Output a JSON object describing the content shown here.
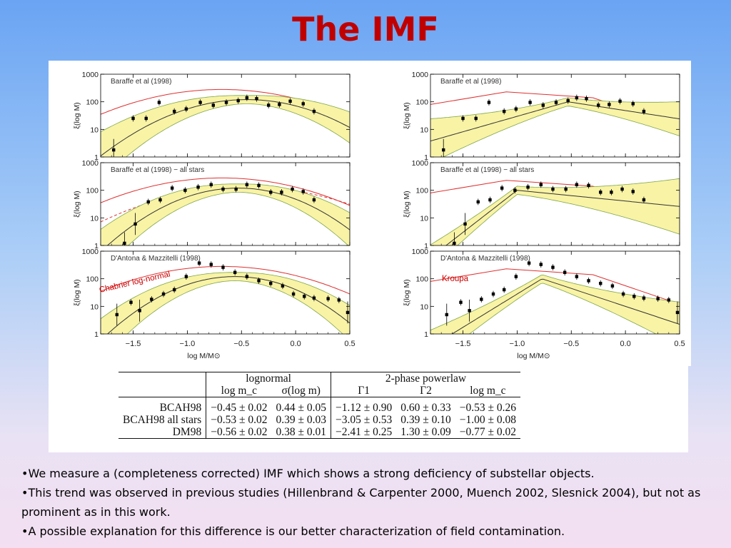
{
  "slide": {
    "title": "The IMF",
    "bullets": [
      "•We measure a (completeness corrected) IMF which shows a strong deficiency of substellar objects.",
      "•This trend was observed in previous studies (Hillenbrand & Carpenter 2000, Muench 2002, Slesnick 2004), but not as prominent as in this work.",
      "•A possible explanation for this difference is our better characterization of field contamination."
    ]
  },
  "table": {
    "group_headers": [
      "lognormal",
      "2-phase powerlaw"
    ],
    "columns": [
      "log m_c",
      "σ(log m)",
      "Γ1",
      "Γ2",
      "log m_c"
    ],
    "rows": [
      {
        "label": "BCAH98",
        "cells": [
          "−0.45 ± 0.02",
          "0.44 ± 0.05",
          "−1.12 ± 0.90",
          "0.60 ± 0.33",
          "−0.53 ± 0.26"
        ]
      },
      {
        "label": "BCAH98 all stars",
        "cells": [
          "−0.53 ± 0.02",
          "0.39 ± 0.03",
          "−3.05 ± 0.53",
          "0.39 ± 0.10",
          "−1.00 ± 0.08"
        ]
      },
      {
        "label": "DM98",
        "cells": [
          "−0.56 ± 0.02",
          "0.38 ± 0.01",
          "−2.41 ± 0.25",
          "1.30 ± 0.09",
          "−0.77 ± 0.02"
        ]
      }
    ]
  },
  "chart_data": {
    "type": "scatter",
    "ylabel": "ξ(log M)",
    "xlabel": "log M/M⊙",
    "xlim": [
      -1.8,
      0.5
    ],
    "ylim": [
      1,
      1000
    ],
    "y_scale": "log",
    "x_ticks": [
      -1.5,
      -1.0,
      -0.5,
      0.0,
      0.5
    ],
    "x_tick_labels": [
      "−1.5",
      "−1.0",
      "−0.5",
      "0.0",
      "0.5"
    ],
    "y_ticks": [
      1,
      10,
      100,
      1000
    ],
    "y_tick_labels": [
      "1",
      "10",
      "100",
      "1000"
    ],
    "colors": {
      "data": "#000000",
      "fit": "#333333",
      "reference": "#e03030",
      "band": "#f9f3a6",
      "band_edge": "#7fa64a",
      "annotation": "#cc0000"
    },
    "panels": [
      {
        "title": "Baraffe et al (1998)",
        "fit": "lognormal",
        "mc": -0.45,
        "sigma": 0.44,
        "points": [
          [
            -1.68,
            1.8
          ],
          [
            -1.5,
            25
          ],
          [
            -1.38,
            25
          ],
          [
            -1.26,
            95
          ],
          [
            -1.12,
            45
          ],
          [
            -1.01,
            55
          ],
          [
            -0.88,
            95
          ],
          [
            -0.76,
            75
          ],
          [
            -0.64,
            95
          ],
          [
            -0.53,
            110
          ],
          [
            -0.45,
            140
          ],
          [
            -0.36,
            130
          ],
          [
            -0.25,
            75
          ],
          [
            -0.15,
            80
          ],
          [
            -0.05,
            105
          ],
          [
            0.07,
            85
          ],
          [
            0.17,
            45
          ]
        ]
      },
      {
        "title": "Baraffe et al (1998) − all stars",
        "fit": "lognormal",
        "mc": -0.53,
        "sigma": 0.39,
        "points": [
          [
            -1.58,
            1.2
          ],
          [
            -1.48,
            6
          ],
          [
            -1.36,
            38
          ],
          [
            -1.25,
            45
          ],
          [
            -1.14,
            120
          ],
          [
            -1.02,
            100
          ],
          [
            -0.9,
            130
          ],
          [
            -0.78,
            160
          ],
          [
            -0.67,
            110
          ],
          [
            -0.55,
            110
          ],
          [
            -0.45,
            160
          ],
          [
            -0.34,
            150
          ],
          [
            -0.23,
            85
          ],
          [
            -0.13,
            85
          ],
          [
            -0.03,
            110
          ],
          [
            0.07,
            90
          ],
          [
            0.17,
            45
          ]
        ]
      },
      {
        "title": "D'Antona & Mazzitelli (1998)",
        "fit": "lognormal",
        "mc": -0.56,
        "sigma": 0.38,
        "annotation": "Chabrier log-normal",
        "points": [
          [
            -1.65,
            5
          ],
          [
            -1.52,
            14
          ],
          [
            -1.44,
            7
          ],
          [
            -1.33,
            18
          ],
          [
            -1.22,
            28
          ],
          [
            -1.12,
            40
          ],
          [
            -1.01,
            120
          ],
          [
            -0.89,
            370
          ],
          [
            -0.78,
            330
          ],
          [
            -0.67,
            260
          ],
          [
            -0.56,
            170
          ],
          [
            -0.45,
            120
          ],
          [
            -0.34,
            85
          ],
          [
            -0.23,
            68
          ],
          [
            -0.12,
            55
          ],
          [
            -0.02,
            28
          ],
          [
            0.08,
            23
          ],
          [
            0.17,
            20
          ],
          [
            0.3,
            19
          ],
          [
            0.4,
            17
          ],
          [
            0.48,
            6
          ]
        ]
      },
      {
        "title": "Baraffe et al (1998)",
        "fit": "2-phase powerlaw",
        "g1": -1.12,
        "g2": 0.6,
        "mc": -0.53,
        "points": [
          [
            -1.68,
            1.8
          ],
          [
            -1.5,
            25
          ],
          [
            -1.38,
            25
          ],
          [
            -1.26,
            95
          ],
          [
            -1.12,
            45
          ],
          [
            -1.01,
            55
          ],
          [
            -0.88,
            95
          ],
          [
            -0.76,
            75
          ],
          [
            -0.64,
            95
          ],
          [
            -0.53,
            110
          ],
          [
            -0.45,
            140
          ],
          [
            -0.36,
            130
          ],
          [
            -0.25,
            75
          ],
          [
            -0.15,
            80
          ],
          [
            -0.05,
            105
          ],
          [
            0.07,
            85
          ],
          [
            0.17,
            45
          ]
        ]
      },
      {
        "title": "Baraffe et al (1998) − all stars",
        "fit": "2-phase powerlaw",
        "g1": -3.05,
        "g2": 0.39,
        "mc": -1.0,
        "points": [
          [
            -1.58,
            1.2
          ],
          [
            -1.48,
            6
          ],
          [
            -1.36,
            38
          ],
          [
            -1.25,
            45
          ],
          [
            -1.14,
            120
          ],
          [
            -1.02,
            100
          ],
          [
            -0.9,
            130
          ],
          [
            -0.78,
            160
          ],
          [
            -0.67,
            110
          ],
          [
            -0.55,
            110
          ],
          [
            -0.45,
            160
          ],
          [
            -0.34,
            150
          ],
          [
            -0.23,
            85
          ],
          [
            -0.13,
            85
          ],
          [
            -0.03,
            110
          ],
          [
            0.07,
            90
          ],
          [
            0.17,
            45
          ]
        ]
      },
      {
        "title": "D'Antona & Mazzitelli (1998)",
        "fit": "2-phase powerlaw",
        "g1": -2.41,
        "g2": 1.3,
        "mc": -0.77,
        "annotation": "Kroupa",
        "points": [
          [
            -1.65,
            5
          ],
          [
            -1.52,
            14
          ],
          [
            -1.44,
            7
          ],
          [
            -1.33,
            18
          ],
          [
            -1.22,
            28
          ],
          [
            -1.12,
            40
          ],
          [
            -1.01,
            120
          ],
          [
            -0.89,
            370
          ],
          [
            -0.78,
            330
          ],
          [
            -0.67,
            260
          ],
          [
            -0.56,
            170
          ],
          [
            -0.45,
            120
          ],
          [
            -0.34,
            85
          ],
          [
            -0.23,
            68
          ],
          [
            -0.12,
            55
          ],
          [
            -0.02,
            28
          ],
          [
            0.08,
            23
          ],
          [
            0.17,
            20
          ],
          [
            0.3,
            19
          ],
          [
            0.4,
            17
          ],
          [
            0.48,
            6
          ]
        ]
      }
    ]
  }
}
